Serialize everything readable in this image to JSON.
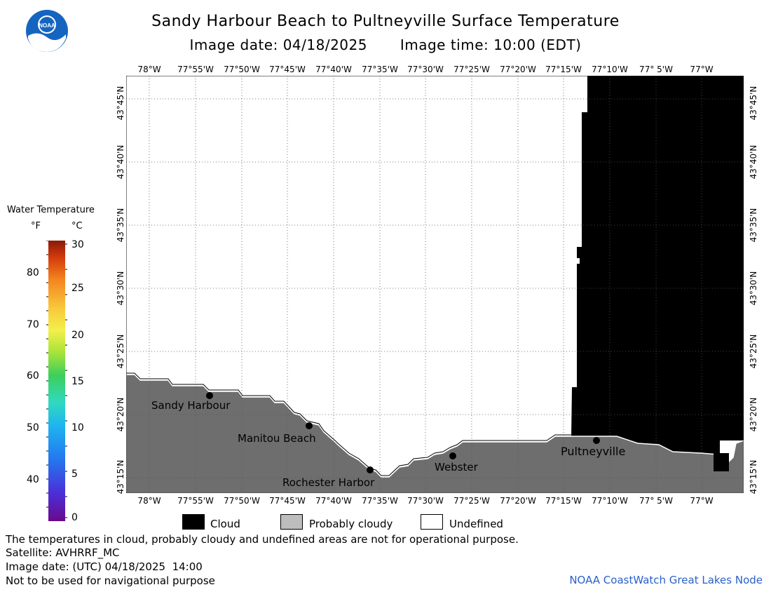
{
  "header": {
    "title": "Sandy Harbour Beach to Pultneyville Surface Temperature",
    "image_date_label": "Image date: 04/18/2025",
    "image_time_label": "Image time: 10:00 (EDT)"
  },
  "logo": {
    "text": "NOAA"
  },
  "map": {
    "lon_labels": [
      "78°W",
      "77°55'W",
      "77°50'W",
      "77°45'W",
      "77°40'W",
      "77°35'W",
      "77°30'W",
      "77°25'W",
      "77°20'W",
      "77°15'W",
      "77°10'W",
      "77° 5'W",
      "77°W"
    ],
    "lat_labels": [
      "43°45'N",
      "43°40'N",
      "43°35'N",
      "43°30'N",
      "43°25'N",
      "43°20'N",
      "43°15'N"
    ],
    "places": [
      {
        "name": "Sandy Harbour"
      },
      {
        "name": "Manitou Beach"
      },
      {
        "name": "Rochester Harbor"
      },
      {
        "name": "Webster"
      },
      {
        "name": "Pultneyville"
      }
    ],
    "colors": {
      "land": "#6e6e6e",
      "cloud": "#000000",
      "undefined": "#ffffff",
      "grid": "#555555"
    }
  },
  "colorbar": {
    "title": "Water Temperature",
    "unit_f": "°F",
    "unit_c": "°C",
    "f_ticks": [
      "80",
      "70",
      "60",
      "50",
      "40"
    ],
    "c_ticks": [
      "30",
      "25",
      "20",
      "15",
      "10",
      "5",
      "0"
    ]
  },
  "legend": {
    "items": [
      {
        "label": "Cloud",
        "color": "#000000"
      },
      {
        "label": "Probably cloudy",
        "color": "#bdbdbd"
      },
      {
        "label": "Undefined",
        "color": "#ffffff"
      }
    ]
  },
  "footer": {
    "disclaimer": "The temperatures in cloud, probably cloudy and undefined areas are not for operational purpose.",
    "satellite": "Satellite: AVHRRF_MC",
    "utc_date": "Image date: (UTC) 04/18/2025  14:00",
    "nav_warning": "Not to be used for navigational purpose",
    "credit": "NOAA CoastWatch Great Lakes Node"
  }
}
